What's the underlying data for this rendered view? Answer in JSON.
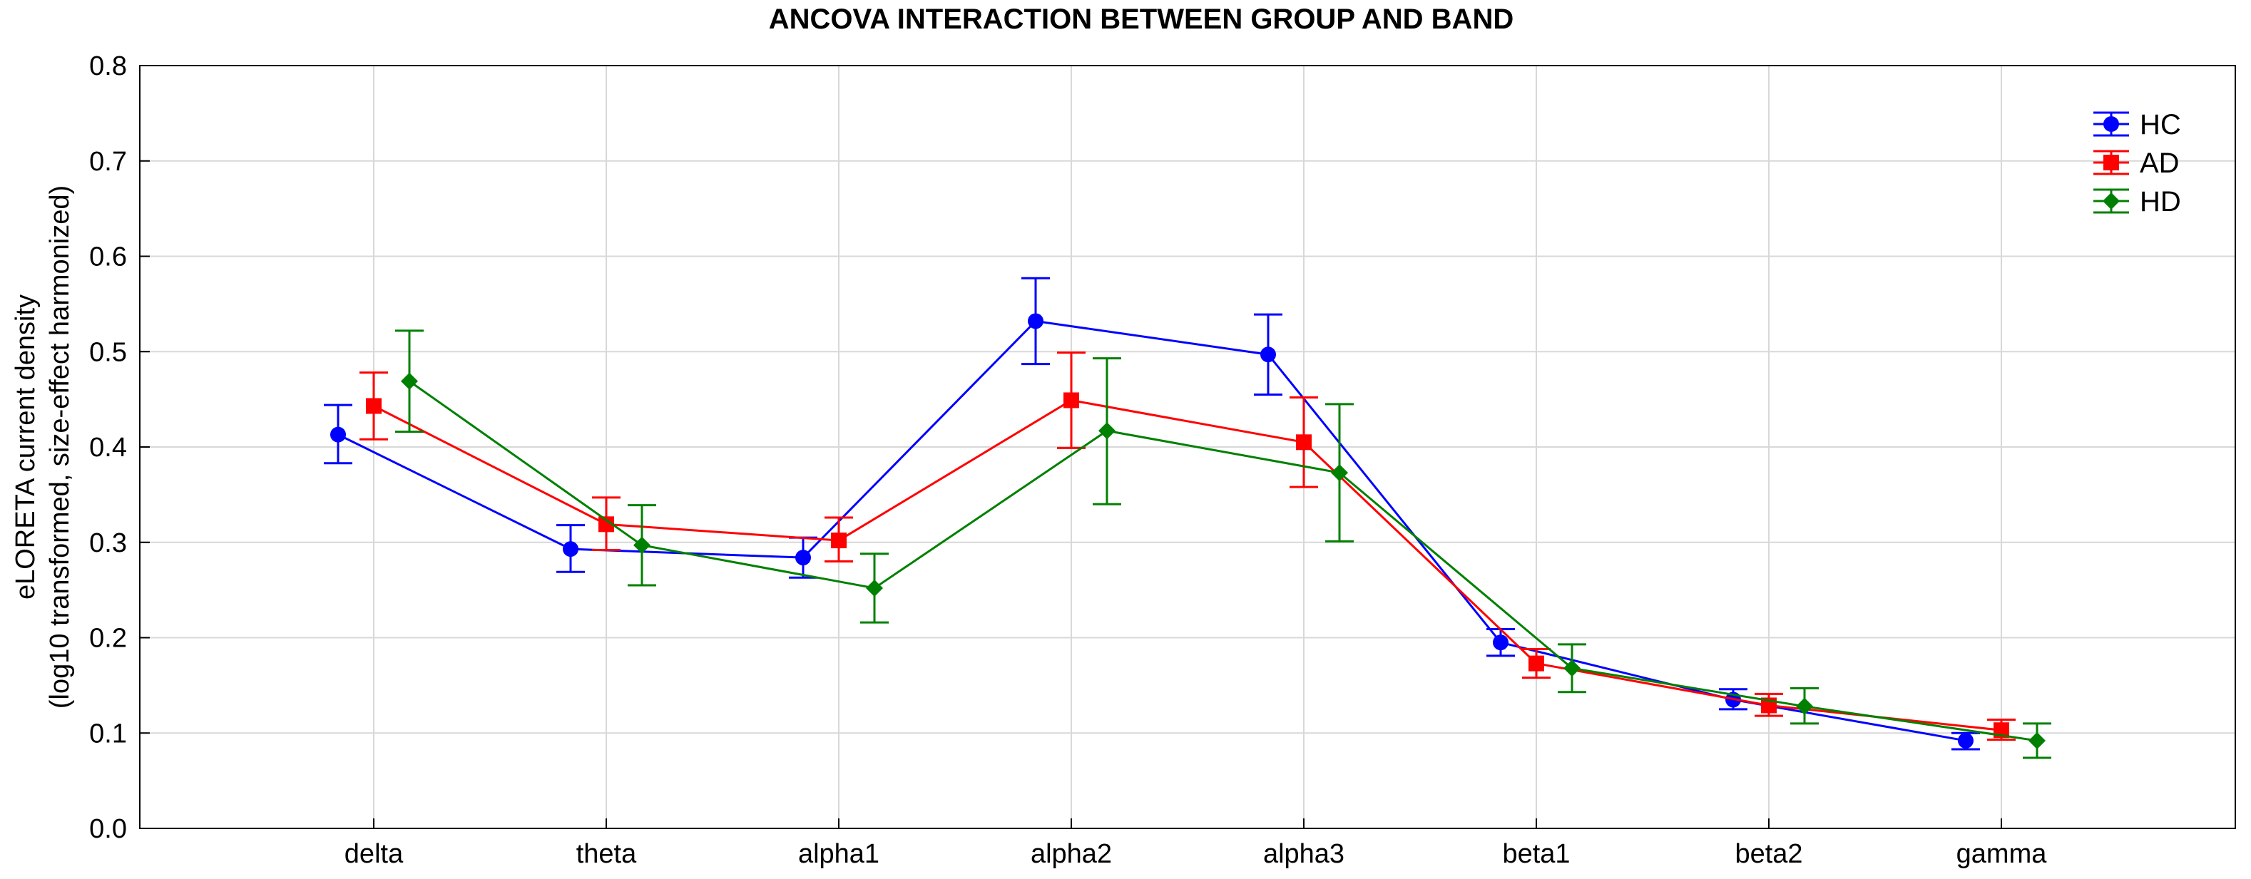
{
  "chart_data": {
    "type": "line",
    "title": "ANCOVA INTERACTION BETWEEN GROUP AND BAND",
    "xlabel": "",
    "ylabel_line1": "eLORETA current density",
    "ylabel_line2": "(log10 transformed, size-effect harmonized)",
    "ylim": [
      0.0,
      0.8
    ],
    "yticks": [
      "0.0",
      "0.1",
      "0.2",
      "0.3",
      "0.4",
      "0.5",
      "0.6",
      "0.7",
      "0.8"
    ],
    "grid": true,
    "legend_position": "top-right",
    "categories": [
      "delta",
      "theta",
      "alpha1",
      "alpha2",
      "alpha3",
      "beta1",
      "beta2",
      "gamma"
    ],
    "series": [
      {
        "name": "HC",
        "color": "#0000ff",
        "marker": "circle",
        "values": [
          0.413,
          0.293,
          0.284,
          0.532,
          0.497,
          0.195,
          0.135,
          0.092
        ],
        "lower": [
          0.383,
          0.269,
          0.263,
          0.487,
          0.455,
          0.181,
          0.125,
          0.083
        ],
        "upper": [
          0.444,
          0.318,
          0.305,
          0.577,
          0.539,
          0.209,
          0.146,
          0.1
        ]
      },
      {
        "name": "AD",
        "color": "#ff0000",
        "marker": "square",
        "values": [
          0.443,
          0.319,
          0.302,
          0.449,
          0.405,
          0.173,
          0.129,
          0.103
        ],
        "lower": [
          0.408,
          0.292,
          0.28,
          0.399,
          0.358,
          0.158,
          0.118,
          0.093
        ],
        "upper": [
          0.478,
          0.347,
          0.326,
          0.499,
          0.452,
          0.188,
          0.141,
          0.114
        ]
      },
      {
        "name": "HD",
        "color": "#008000",
        "marker": "diamond",
        "values": [
          0.469,
          0.297,
          0.252,
          0.417,
          0.373,
          0.168,
          0.128,
          0.092
        ],
        "lower": [
          0.416,
          0.255,
          0.216,
          0.34,
          0.301,
          0.143,
          0.11,
          0.074
        ],
        "upper": [
          0.522,
          0.339,
          0.288,
          0.493,
          0.445,
          0.193,
          0.147,
          0.11
        ]
      }
    ]
  }
}
